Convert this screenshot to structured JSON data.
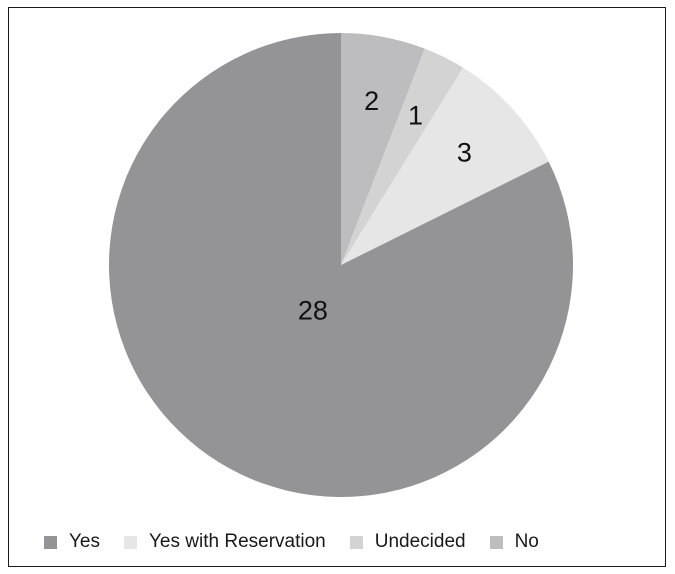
{
  "chart_data": {
    "type": "pie",
    "title": "",
    "categories": [
      "Yes",
      "Yes with Reservation",
      "Undecided",
      "No"
    ],
    "values": [
      28,
      3,
      1,
      2
    ],
    "colors": [
      "#949497",
      "#e6e6e7",
      "#d3d3d4",
      "#bdbdbf"
    ],
    "data_labels": [
      "28",
      "3",
      "1",
      "2"
    ],
    "slice_order": "clockwise from top: No, Undecided, Yes with Reservation, Yes",
    "legend_position": "bottom"
  },
  "legend": {
    "items": [
      {
        "label": "Yes",
        "color": "#949497"
      },
      {
        "label": "Yes with Reservation",
        "color": "#e6e6e7"
      },
      {
        "label": "Undecided",
        "color": "#d3d3d4"
      },
      {
        "label": "No",
        "color": "#bdbdbf"
      }
    ]
  }
}
